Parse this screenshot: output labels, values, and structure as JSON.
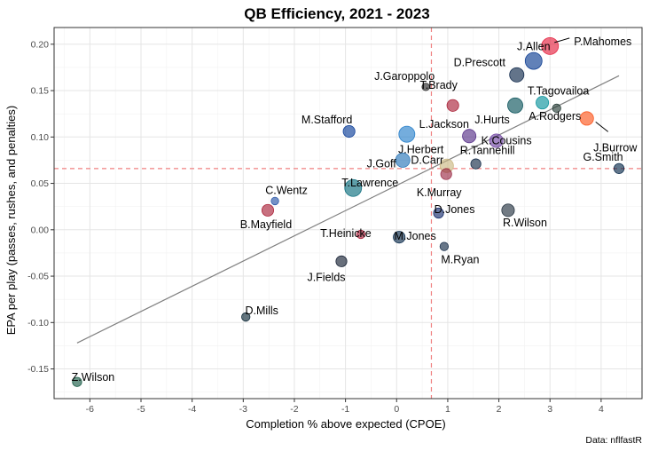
{
  "chart_data": {
    "type": "scatter",
    "title": "QB Efficiency, 2021 - 2023",
    "xlabel": "Completion % above expected (CPOE)",
    "ylabel": "EPA per play (passes, rushes, and penalties)",
    "caption": "Data: nflfastR",
    "xlim": [
      -6.7,
      4.8
    ],
    "ylim": [
      -0.182,
      0.218
    ],
    "x_ticks": [
      -6,
      -5,
      -4,
      -3,
      -2,
      -1,
      0,
      1,
      2,
      3,
      4
    ],
    "y_ticks": [
      -0.15,
      -0.1,
      -0.05,
      0.0,
      0.05,
      0.1,
      0.15,
      0.2
    ],
    "x_tick_labels": [
      "-6",
      "-5",
      "-4",
      "-3",
      "-2",
      "-1",
      "0",
      "1",
      "2",
      "3",
      "4"
    ],
    "y_tick_labels": [
      "-0.15",
      "-0.10",
      "-0.05",
      "0.00",
      "0.05",
      "0.10",
      "0.15",
      "0.20"
    ],
    "grid": true,
    "reference_lines": {
      "vline_x": 0.68,
      "hline_y": 0.066,
      "color": "#f08080"
    },
    "trend_line": {
      "x": [
        -6.25,
        4.35
      ],
      "y": [
        -0.122,
        0.166
      ],
      "color": "#808080"
    },
    "points": [
      {
        "name": "P.Mahomes",
        "x": 3.0,
        "y": 0.198,
        "size": 10,
        "color": "#e31837"
      },
      {
        "name": "J.Allen",
        "x": 2.68,
        "y": 0.182,
        "size": 10,
        "color": "#00338d"
      },
      {
        "name": "D.Prescott",
        "x": 2.35,
        "y": 0.167,
        "size": 8.5,
        "color": "#041e42"
      },
      {
        "name": "J.Garoppolo",
        "x": 0.57,
        "y": 0.154,
        "size": 4.5,
        "color": "#202020"
      },
      {
        "name": "T.Brady",
        "x": 1.1,
        "y": 0.134,
        "size": 7,
        "color": "#a71930"
      },
      {
        "name": "T.Tagovailoa",
        "x": 2.85,
        "y": 0.137,
        "size": 7.5,
        "color": "#008e97"
      },
      {
        "name": "J.Hurts",
        "x": 2.32,
        "y": 0.134,
        "size": 9,
        "color": "#004c54"
      },
      {
        "name": "A.Rodgers",
        "x": 3.13,
        "y": 0.131,
        "size": 5,
        "color": "#203731"
      },
      {
        "name": "J.Burrow",
        "x": 3.72,
        "y": 0.12,
        "size": 8,
        "color": "#fb4f14"
      },
      {
        "name": "M.Stafford",
        "x": -0.93,
        "y": 0.106,
        "size": 7,
        "color": "#003594"
      },
      {
        "name": "L.Jackson",
        "x": 0.2,
        "y": 0.103,
        "size": 9.5,
        "color": "#1e7ac8"
      },
      {
        "name": "K.Cousins",
        "x": 1.42,
        "y": 0.101,
        "size": 8,
        "color": "#4f2683"
      },
      {
        "name": "J.Herbert",
        "x": 1.95,
        "y": 0.096,
        "size": 8,
        "color": "#6a3da0"
      },
      {
        "name": "J.Goff",
        "x": 0.12,
        "y": 0.075,
        "size": 8.5,
        "color": "#1f6fb5"
      },
      {
        "name": "D.Carr",
        "x": 0.98,
        "y": 0.069,
        "size": 8,
        "color": "#c8b47c"
      },
      {
        "name": "R.Tannehill",
        "x": 1.55,
        "y": 0.071,
        "size": 6,
        "color": "#0c2340"
      },
      {
        "name": "G.Smith",
        "x": 4.35,
        "y": 0.066,
        "size": 6,
        "color": "#002244"
      },
      {
        "name": "K.Murray",
        "x": 0.97,
        "y": 0.06,
        "size": 6.5,
        "color": "#97233f"
      },
      {
        "name": "T.Lawrence",
        "x": -0.85,
        "y": 0.045,
        "size": 10,
        "color": "#006778"
      },
      {
        "name": "C.Wentz",
        "x": -2.38,
        "y": 0.031,
        "size": 4.5,
        "color": "#1f4ea3"
      },
      {
        "name": "B.Mayfield",
        "x": -2.52,
        "y": 0.021,
        "size": 7,
        "color": "#a71930"
      },
      {
        "name": "D.Jones",
        "x": 0.82,
        "y": 0.018,
        "size": 6,
        "color": "#0b2265"
      },
      {
        "name": "R.Wilson",
        "x": 2.18,
        "y": 0.021,
        "size": 7.5,
        "color": "#1c2a39"
      },
      {
        "name": "T.Heinicke",
        "x": -0.7,
        "y": -0.005,
        "size": 5,
        "color": "#a2142e"
      },
      {
        "name": "M.Jones",
        "x": 0.05,
        "y": -0.008,
        "size": 7,
        "color": "#002244"
      },
      {
        "name": "M.Ryan",
        "x": 0.93,
        "y": -0.018,
        "size": 5,
        "color": "#0c2340"
      },
      {
        "name": "J.Fields",
        "x": -1.08,
        "y": -0.034,
        "size": 6.5,
        "color": "#0b162a"
      },
      {
        "name": "D.Mills",
        "x": -2.95,
        "y": -0.094,
        "size": 5,
        "color": "#03202f"
      },
      {
        "name": "Z.Wilson",
        "x": -6.25,
        "y": -0.164,
        "size": 5.5,
        "color": "#125740"
      }
    ]
  }
}
